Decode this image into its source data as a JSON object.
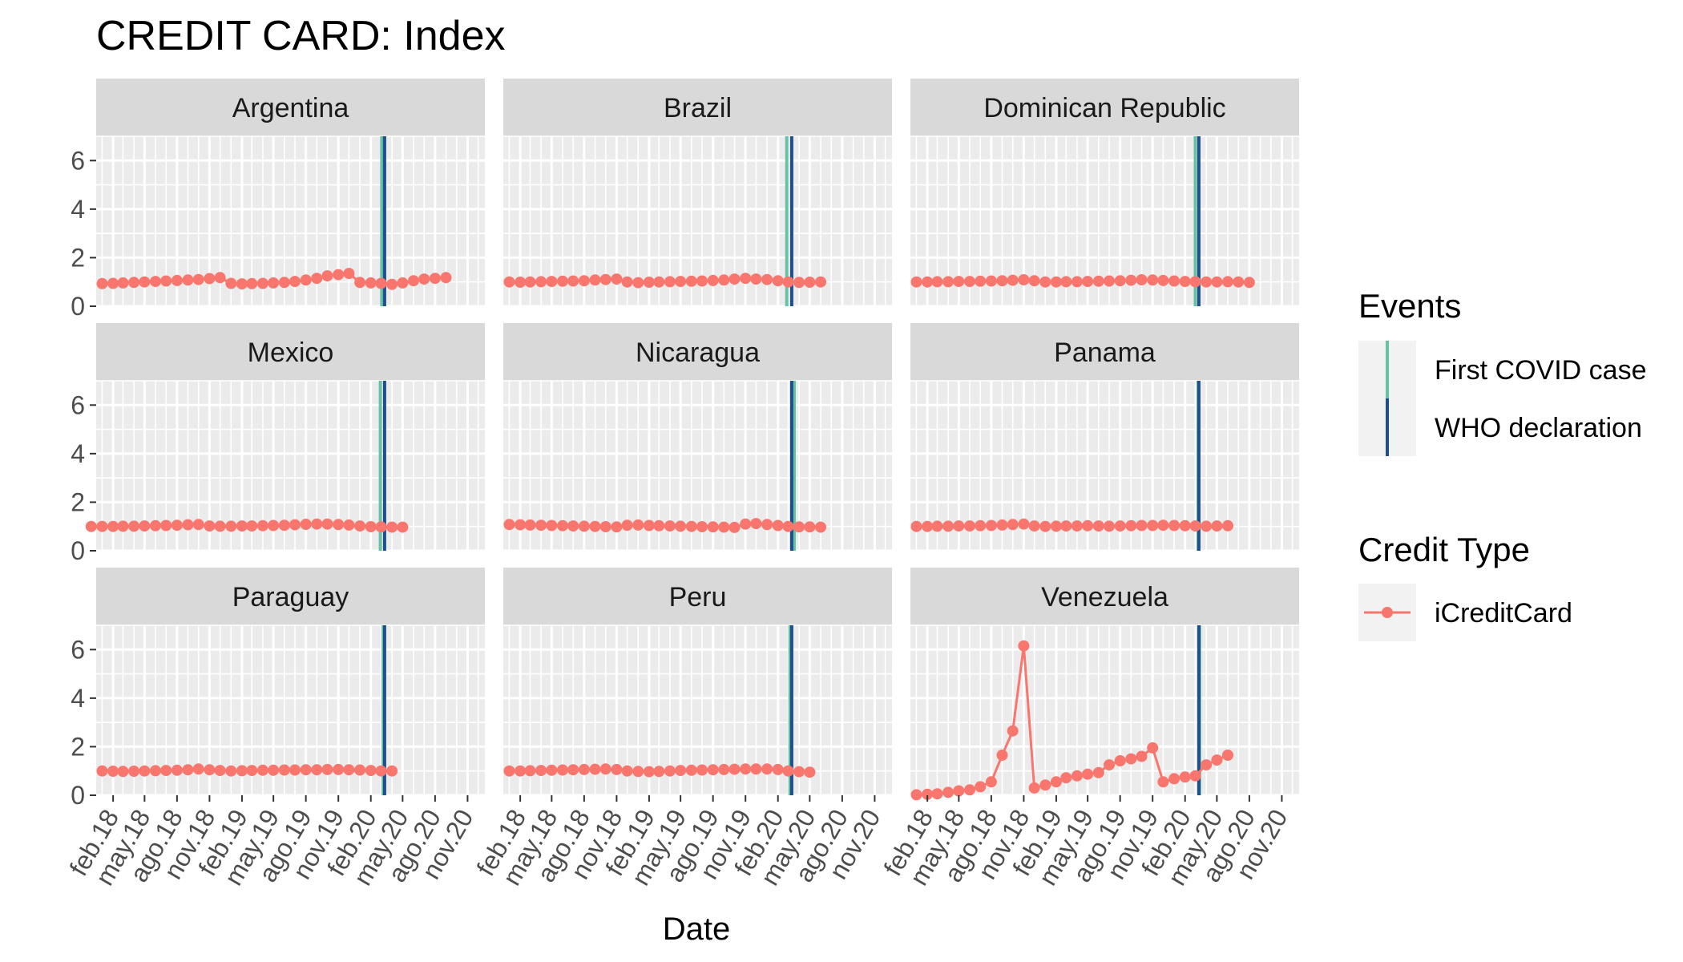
{
  "chart_data": {
    "type": "line",
    "title": "CREDIT CARD: Index",
    "xlabel": "Date",
    "ylabel": "",
    "ylim": [
      0,
      7
    ],
    "y_ticks": [
      0,
      2,
      4,
      6
    ],
    "x_range": [
      "2017-12-15",
      "2020-12-20"
    ],
    "x_ticks": [
      {
        "date": "2018-02-01",
        "label": "feb.18"
      },
      {
        "date": "2018-05-01",
        "label": "may.18"
      },
      {
        "date": "2018-08-01",
        "label": "ago.18"
      },
      {
        "date": "2018-11-01",
        "label": "nov.18"
      },
      {
        "date": "2019-02-01",
        "label": "feb.19"
      },
      {
        "date": "2019-05-01",
        "label": "may.19"
      },
      {
        "date": "2019-08-01",
        "label": "ago.19"
      },
      {
        "date": "2019-11-01",
        "label": "nov.19"
      },
      {
        "date": "2020-02-01",
        "label": "feb.20"
      },
      {
        "date": "2020-05-01",
        "label": "may.20"
      },
      {
        "date": "2020-08-01",
        "label": "ago.20"
      },
      {
        "date": "2020-11-01",
        "label": "nov.20"
      }
    ],
    "grid": true,
    "legend_position": "right",
    "events_legend": {
      "title": "Events",
      "items": [
        {
          "label": "First COVID case",
          "color": "#66C2A5"
        },
        {
          "label": "WHO declaration",
          "color": "#1F4E8C"
        }
      ]
    },
    "series_legend": {
      "title": "Credit Type",
      "items": [
        {
          "label": "iCreditCard",
          "color": "#F8766D"
        }
      ]
    },
    "panels": [
      {
        "name": "Argentina",
        "start": "2018-01",
        "first_covid": "2020-03-03",
        "who": "2020-03-11",
        "values": [
          0.93,
          0.94,
          0.96,
          0.98,
          1.0,
          1.02,
          1.04,
          1.06,
          1.08,
          1.1,
          1.14,
          1.18,
          0.94,
          0.92,
          0.93,
          0.94,
          0.96,
          0.98,
          1.02,
          1.08,
          1.15,
          1.25,
          1.3,
          1.35,
          0.98,
          0.96,
          0.94,
          0.9,
          0.96,
          1.05,
          1.12,
          1.15,
          1.18
        ]
      },
      {
        "name": "Brazil",
        "start": "2018-01",
        "first_covid": "2020-02-26",
        "who": "2020-03-11",
        "values": [
          1.0,
          0.99,
          1.0,
          1.01,
          1.02,
          1.03,
          1.04,
          1.05,
          1.08,
          1.1,
          1.12,
          1.0,
          0.97,
          0.99,
          1.0,
          1.01,
          1.02,
          1.03,
          1.04,
          1.06,
          1.08,
          1.12,
          1.15,
          1.12,
          1.1,
          1.05,
          1.0,
          0.98,
          0.99,
          1.0
        ]
      },
      {
        "name": "Dominican Republic",
        "start": "2018-01",
        "first_covid": "2020-03-01",
        "who": "2020-03-11",
        "values": [
          1.0,
          1.0,
          1.01,
          1.01,
          1.02,
          1.02,
          1.03,
          1.04,
          1.05,
          1.07,
          1.09,
          1.05,
          1.0,
          1.0,
          1.01,
          1.01,
          1.02,
          1.03,
          1.04,
          1.05,
          1.07,
          1.09,
          1.08,
          1.06,
          1.04,
          1.02,
          1.01,
          1.0,
          1.0,
          1.01,
          1.0,
          0.98
        ]
      },
      {
        "name": "Mexico",
        "start": "2017-12",
        "first_covid": "2020-02-28",
        "who": "2020-03-11",
        "values": [
          1.0,
          1.0,
          1.0,
          1.01,
          1.01,
          1.02,
          1.03,
          1.04,
          1.05,
          1.07,
          1.08,
          1.02,
          1.01,
          1.01,
          1.02,
          1.02,
          1.03,
          1.04,
          1.05,
          1.07,
          1.09,
          1.1,
          1.1,
          1.08,
          1.06,
          1.02,
          0.99,
          0.98,
          0.97,
          0.97
        ]
      },
      {
        "name": "Nicaragua",
        "start": "2018-01",
        "first_covid": "2020-03-18",
        "who": "2020-03-11",
        "values": [
          1.08,
          1.07,
          1.06,
          1.05,
          1.04,
          1.03,
          1.02,
          1.01,
          1.0,
          0.99,
          0.98,
          1.05,
          1.06,
          1.04,
          1.03,
          1.02,
          1.01,
          1.0,
          0.99,
          0.98,
          0.97,
          0.96,
          1.1,
          1.12,
          1.08,
          1.04,
          1.0,
          0.98,
          0.98,
          0.97
        ]
      },
      {
        "name": "Panama",
        "start": "2018-01",
        "first_covid": "2020-03-09",
        "who": "2020-03-11",
        "values": [
          1.0,
          1.0,
          1.01,
          1.01,
          1.02,
          1.02,
          1.03,
          1.04,
          1.06,
          1.08,
          1.1,
          1.02,
          1.0,
          1.01,
          1.02,
          1.02,
          1.03,
          1.02,
          1.01,
          1.02,
          1.03,
          1.04,
          1.04,
          1.05,
          1.04,
          1.03,
          1.02,
          1.01,
          1.02,
          1.03
        ]
      },
      {
        "name": "Paraguay",
        "start": "2018-01",
        "first_covid": "2020-03-07",
        "who": "2020-03-11",
        "values": [
          1.0,
          0.99,
          0.98,
          0.99,
          1.0,
          1.01,
          1.02,
          1.03,
          1.05,
          1.08,
          1.05,
          1.02,
          1.0,
          1.01,
          1.02,
          1.03,
          1.03,
          1.04,
          1.04,
          1.05,
          1.05,
          1.06,
          1.06,
          1.05,
          1.04,
          1.02,
          1.0,
          1.0
        ]
      },
      {
        "name": "Peru",
        "start": "2018-01",
        "first_covid": "2020-03-06",
        "who": "2020-03-11",
        "values": [
          1.0,
          1.0,
          1.01,
          1.02,
          1.03,
          1.04,
          1.05,
          1.06,
          1.07,
          1.08,
          1.06,
          1.0,
          0.98,
          0.97,
          0.98,
          1.0,
          1.02,
          1.03,
          1.04,
          1.05,
          1.06,
          1.07,
          1.08,
          1.08,
          1.08,
          1.06,
          1.0,
          0.97,
          0.95
        ]
      },
      {
        "name": "Venezuela",
        "start": "2018-01",
        "first_covid": "2020-03-13",
        "who": "2020-03-11",
        "values": [
          0.02,
          0.04,
          0.06,
          0.12,
          0.18,
          0.22,
          0.35,
          0.55,
          1.65,
          2.65,
          6.15,
          0.3,
          0.42,
          0.55,
          0.72,
          0.8,
          0.87,
          0.93,
          1.25,
          1.42,
          1.5,
          1.6,
          1.95,
          0.55,
          0.68,
          0.75,
          0.8,
          1.25,
          1.45,
          1.65
        ]
      }
    ]
  }
}
